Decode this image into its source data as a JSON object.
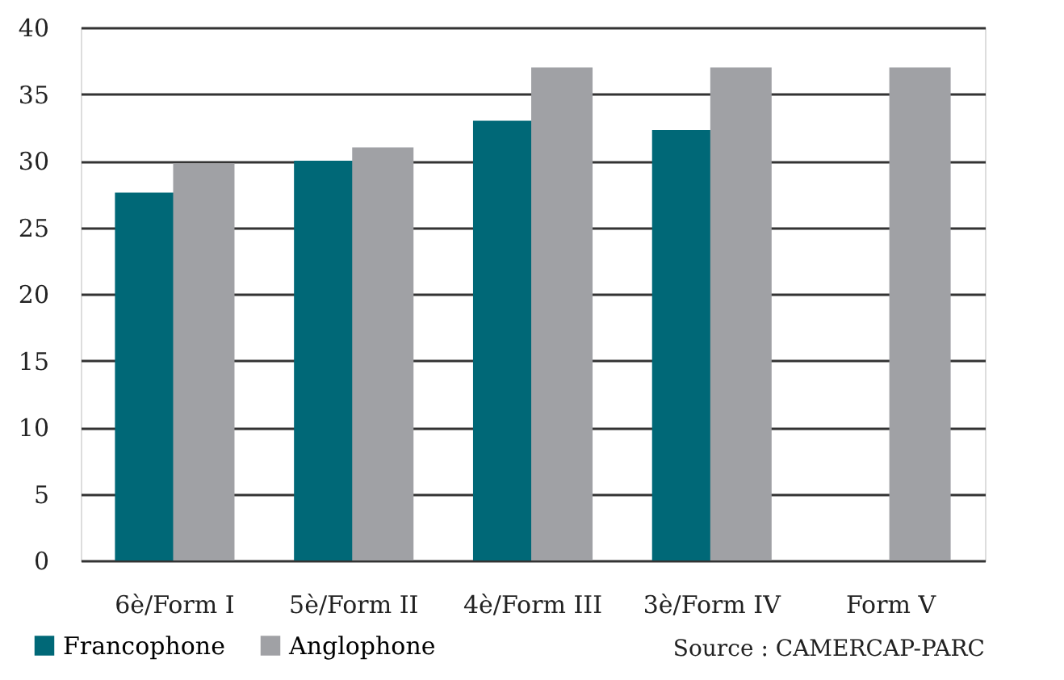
{
  "chart_data": {
    "type": "bar",
    "categories": [
      "6è/Form I",
      "5è/Form II",
      "4è/Form III",
      "3è/Form IV",
      "Form V"
    ],
    "series": [
      {
        "name": "Francophone",
        "color": "#006877",
        "values": [
          27.6,
          30.0,
          33.0,
          32.3,
          null
        ]
      },
      {
        "name": "Anglophone",
        "color": "#a0a1a5",
        "values": [
          29.8,
          31.0,
          37.0,
          37.0,
          37.0
        ]
      }
    ],
    "ylim": [
      0,
      40
    ],
    "yticks": [
      0,
      5,
      10,
      15,
      20,
      25,
      30,
      35,
      40
    ],
    "grid": "y",
    "legend": "bottom left",
    "annotations": [
      "Source : CAMERCAP-PARC"
    ]
  }
}
